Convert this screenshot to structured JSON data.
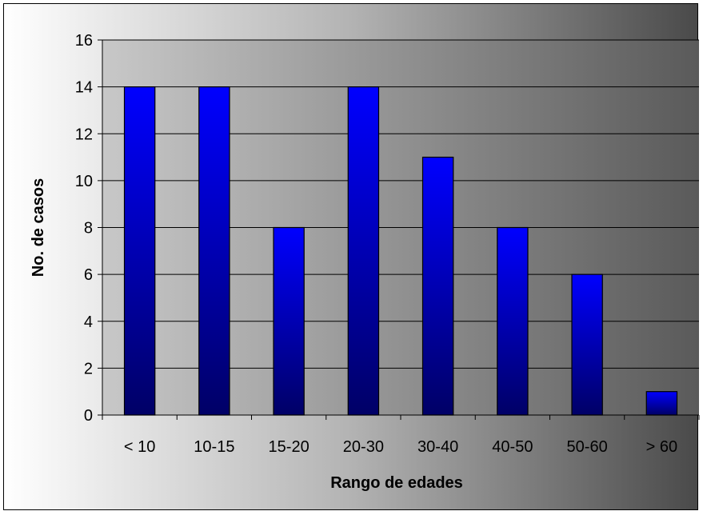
{
  "chart_data": {
    "type": "bar",
    "categories": [
      "< 10",
      "10-15",
      "15-20",
      "20-30",
      "30-40",
      "40-50",
      "50-60",
      "> 60"
    ],
    "values": [
      14,
      14,
      8,
      14,
      11,
      8,
      6,
      1
    ],
    "title": "",
    "xlabel": "Rango de edades",
    "ylabel": "No. de casos",
    "ylim": [
      0,
      16
    ],
    "yticks": [
      "0",
      "2",
      "4",
      "6",
      "8",
      "10",
      "12",
      "14",
      "16"
    ],
    "grid": true,
    "legend": "none",
    "colors": {
      "bar_top": "#0000ff",
      "bar_bottom": "#000066",
      "plot_light": "#c8c8c8",
      "plot_dark": "#5a5a5a",
      "gridline": "#000000"
    }
  }
}
